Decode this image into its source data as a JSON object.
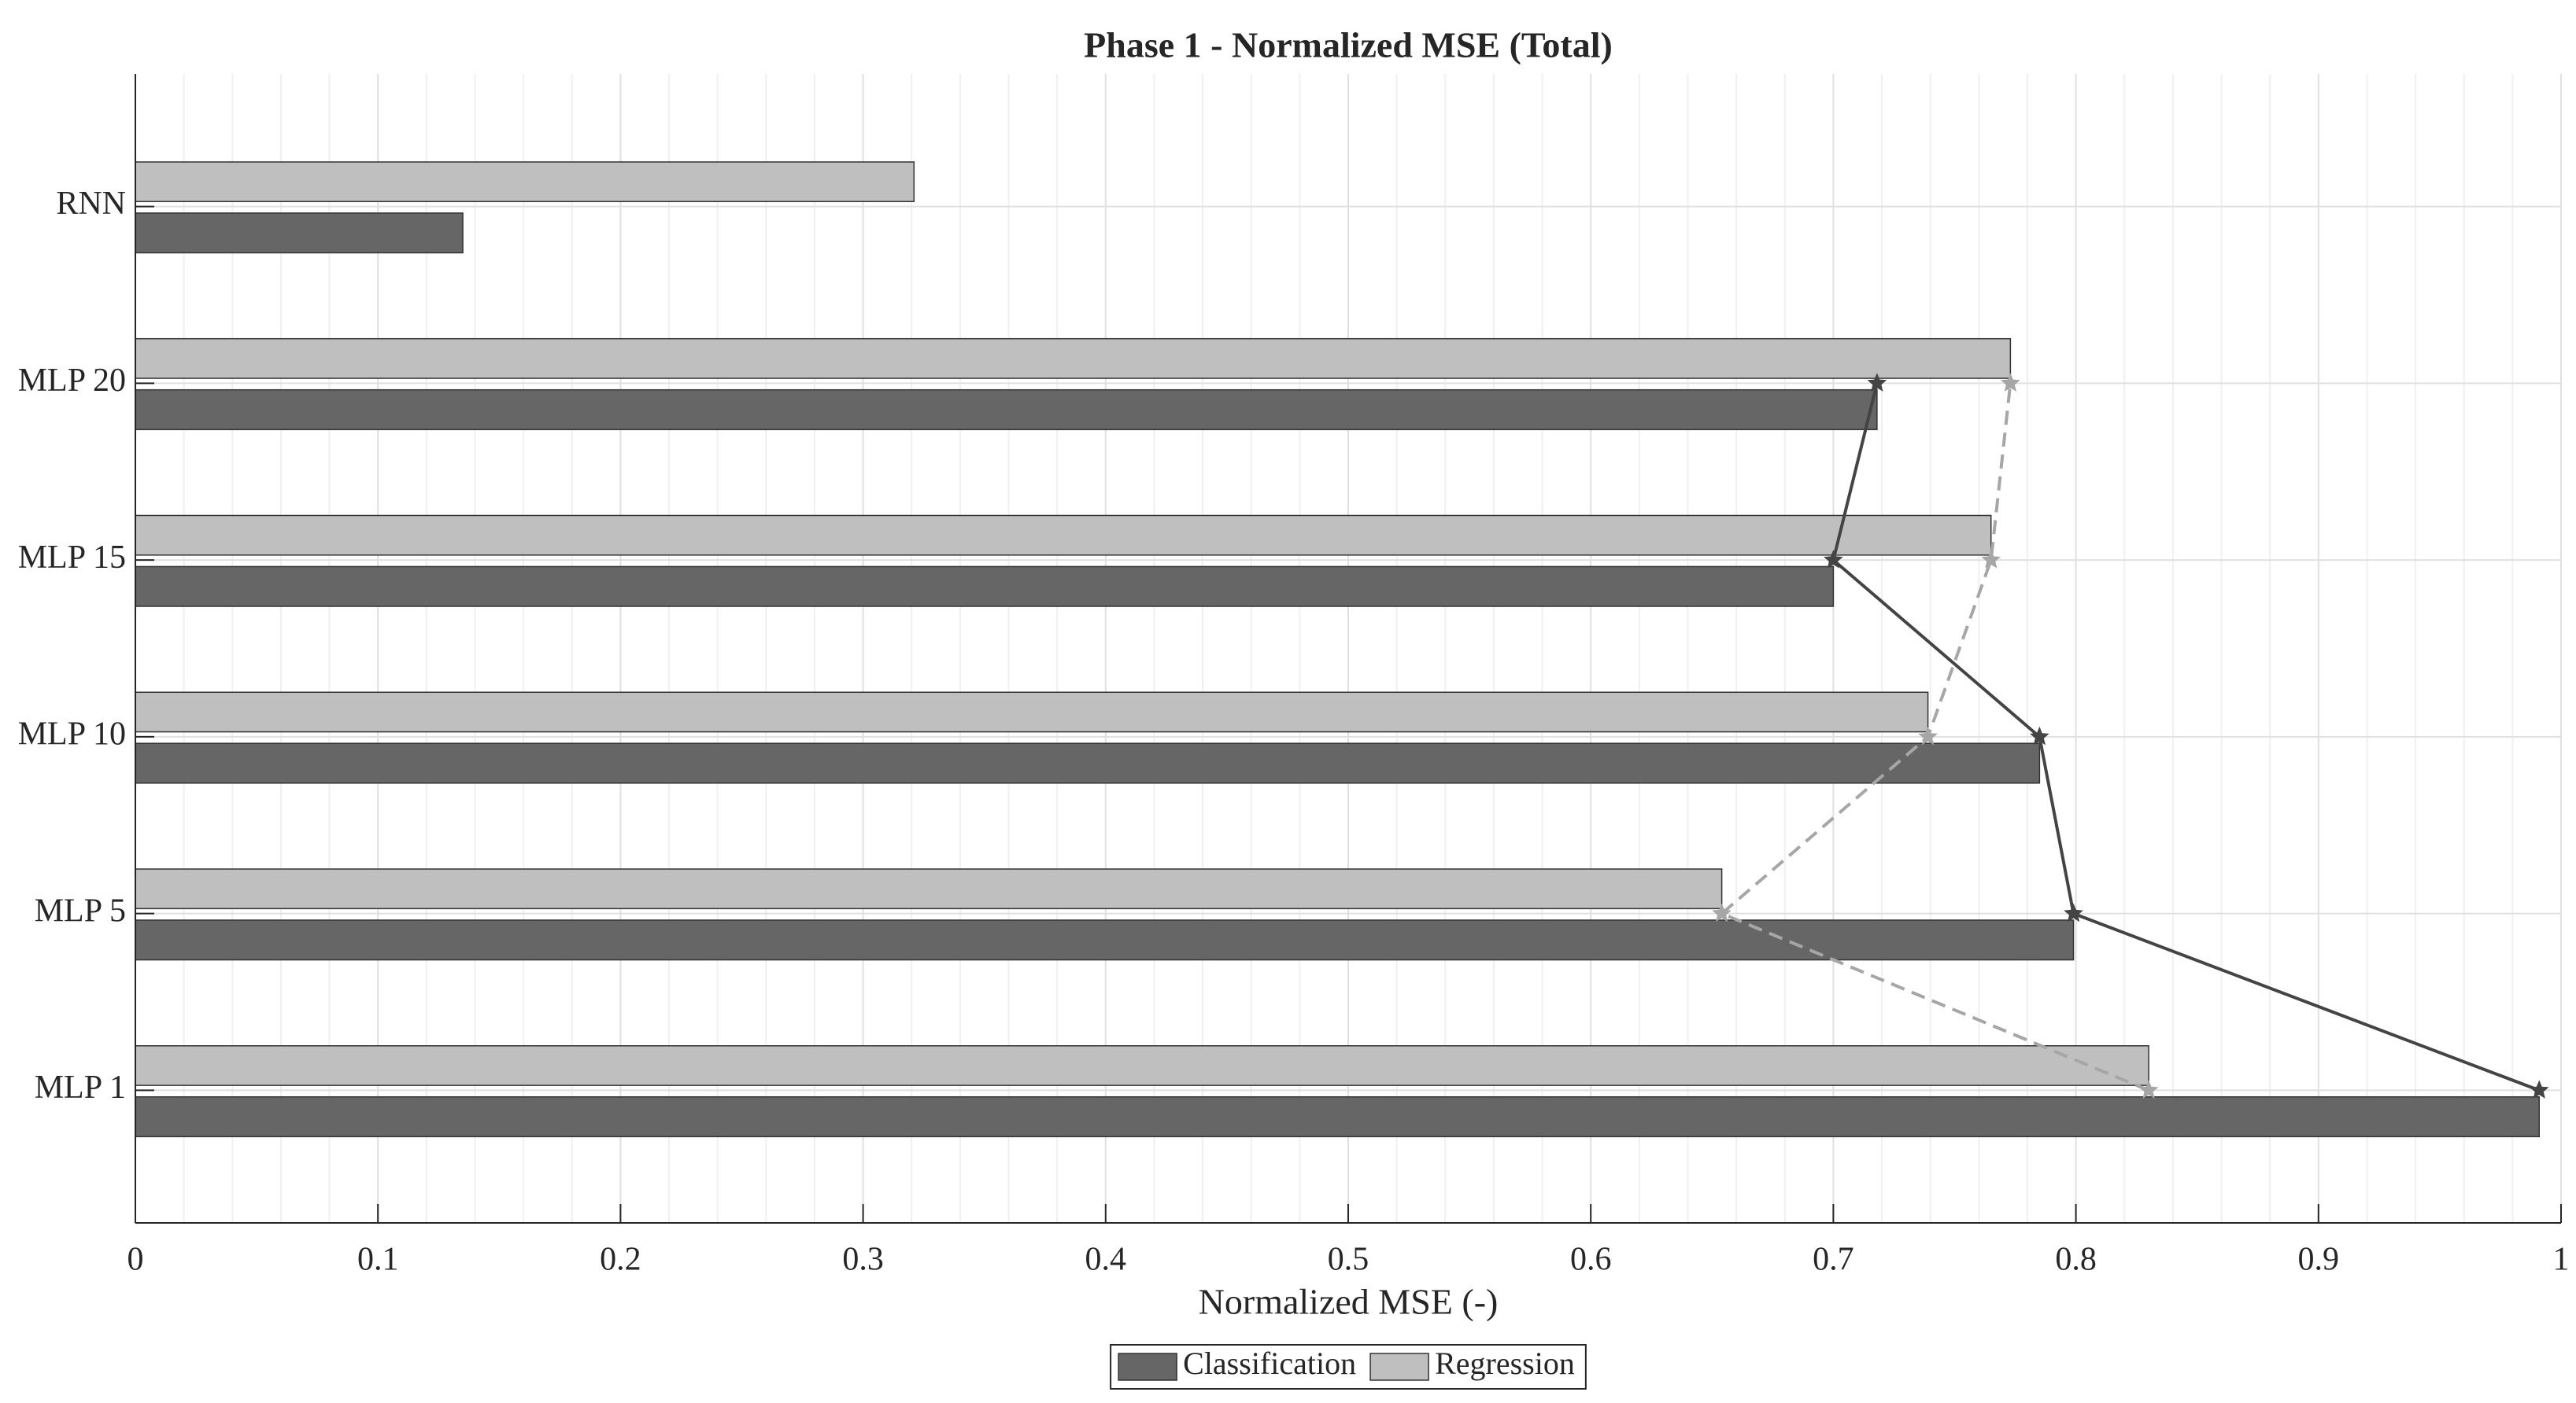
{
  "chart_data": {
    "type": "barh",
    "title": "Phase 1 - Normalized MSE (Total)",
    "x_label": "Normalized MSE (-)",
    "categories": [
      "MLP 1",
      "MLP 5",
      "MLP 10",
      "MLP 15",
      "MLP 20",
      "RNN"
    ],
    "series": [
      {
        "name": "Classification",
        "color": "#666666",
        "line_color": "#444444",
        "line_style": "solid",
        "values": [
          0.991,
          0.799,
          0.785,
          0.7,
          0.718,
          0.135
        ],
        "line_values": [
          0.991,
          0.799,
          0.785,
          0.7,
          0.718,
          null
        ]
      },
      {
        "name": "Regression",
        "color": "#bfbfbf",
        "line_color": "#a6a6a6",
        "line_style": "dashed",
        "values": [
          0.83,
          0.654,
          0.739,
          0.765,
          0.773,
          0.321
        ],
        "line_values": [
          0.83,
          0.654,
          0.739,
          0.765,
          0.773,
          null
        ]
      }
    ],
    "xlim": [
      0,
      1
    ],
    "xticks": [
      0,
      0.1,
      0.2,
      0.3,
      0.4,
      0.5,
      0.6,
      0.7,
      0.8,
      0.9,
      1
    ],
    "grid": true,
    "minor_grid": true,
    "legend": "bottom"
  }
}
